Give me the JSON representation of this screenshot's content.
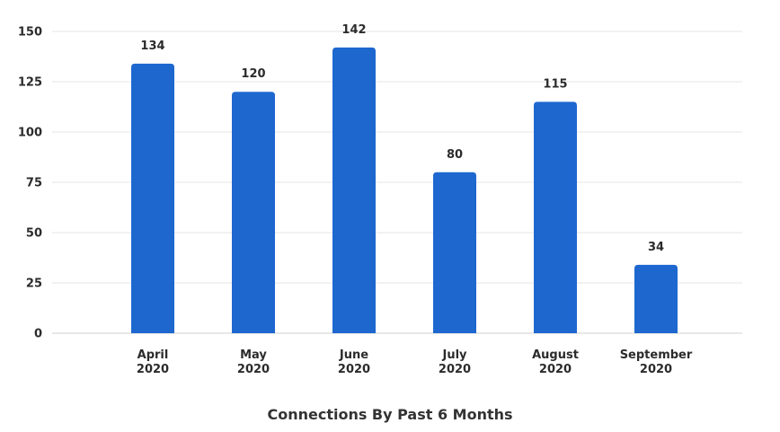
{
  "chart_data": {
    "type": "bar",
    "title": "Connections By Past 6 Months",
    "xlabel": "",
    "ylabel": "",
    "categories": [
      [
        "April",
        "2020"
      ],
      [
        "May",
        "2020"
      ],
      [
        "June",
        "2020"
      ],
      [
        "July",
        "2020"
      ],
      [
        "August",
        "2020"
      ],
      [
        "September",
        "2020"
      ]
    ],
    "values": [
      134,
      120,
      142,
      80,
      115,
      34
    ],
    "ylim": [
      0,
      150
    ],
    "yticks": [
      0,
      25,
      50,
      75,
      100,
      125,
      150
    ],
    "grid": true,
    "legend": "none",
    "colors": {
      "bar": "#1d67cf",
      "grid": "#e6e6e6",
      "axis": "#cfcfcf",
      "text": "#2b2b2b"
    }
  }
}
